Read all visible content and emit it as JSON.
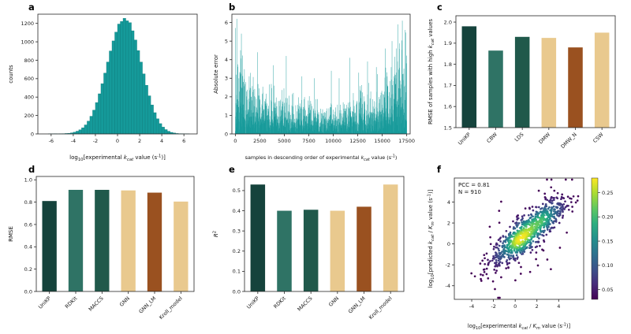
{
  "figure": {
    "background": "#ffffff"
  },
  "chart_data": [
    {
      "id": "a",
      "panel_label": "a",
      "type": "histogram",
      "xlabel_segments": [
        {
          "t": "log"
        },
        {
          "t": "10",
          "sub": true
        },
        {
          "t": "[experimental "
        },
        {
          "t": "k",
          "italic": true
        },
        {
          "t": "cat",
          "sub": true,
          "italic": true
        },
        {
          "t": " value (s"
        },
        {
          "t": "-1",
          "sup": true
        },
        {
          "t": ")]"
        }
      ],
      "ylabel_segments": [
        {
          "t": "counts"
        }
      ],
      "xlim": [
        -7.2,
        7.2
      ],
      "ylim": [
        0,
        1300
      ],
      "xticks": [
        -6,
        -4,
        -2,
        0,
        2,
        4,
        6
      ],
      "xtick_labels": [
        "-6",
        "-4",
        "-2",
        "0",
        "2",
        "4",
        "6"
      ],
      "yticks": [
        0,
        200,
        400,
        600,
        800,
        1000,
        1200
      ],
      "ytick_labels": [
        "0",
        "200",
        "400",
        "600",
        "800",
        "1000",
        "1200"
      ],
      "bar_color": "#159a9a",
      "bar_edge": "#0d7a7a",
      "bin_start": -6.5,
      "bin_width": 0.25,
      "counts": [
        0,
        1,
        1,
        2,
        1,
        2,
        3,
        5,
        7,
        12,
        19,
        30,
        45,
        67,
        98,
        139,
        192,
        258,
        340,
        436,
        545,
        660,
        781,
        901,
        1010,
        1105,
        1193,
        1221,
        1255,
        1228,
        1208,
        1120,
        1020,
        905,
        780,
        652,
        528,
        414,
        315,
        231,
        164,
        112,
        74,
        47,
        29,
        17,
        10,
        5,
        3,
        2,
        1,
        1
      ]
    },
    {
      "id": "b",
      "panel_label": "b",
      "type": "spikes",
      "xlabel_segments": [
        {
          "t": "samples in descending order of experimental "
        },
        {
          "t": "k",
          "italic": true
        },
        {
          "t": "cat",
          "sub": true,
          "italic": true
        },
        {
          "t": " value (s"
        },
        {
          "t": "-1",
          "sup": true
        },
        {
          "t": ")"
        }
      ],
      "xlabel_size": 6.4,
      "ylabel_segments": [
        {
          "t": "Absolute error"
        }
      ],
      "xlim": [
        -350,
        17850
      ],
      "ylim": [
        0,
        6.45
      ],
      "xticks": [
        0,
        2500,
        5000,
        7500,
        10000,
        12500,
        15000,
        17500
      ],
      "xtick_labels": [
        "0",
        "2500",
        "5000",
        "7500",
        "10000",
        "12500",
        "15000",
        "17500"
      ],
      "yticks": [
        0,
        1,
        2,
        3,
        4,
        5,
        6
      ],
      "ytick_labels": [
        "0",
        "1",
        "2",
        "3",
        "4",
        "5",
        "6"
      ],
      "color": "#159a9a",
      "seed": 7,
      "n_samples": 17500,
      "envelope": [
        [
          0,
          6.2
        ],
        [
          300,
          5.0
        ],
        [
          1200,
          3.6
        ],
        [
          3000,
          2.8
        ],
        [
          6000,
          2.2
        ],
        [
          9000,
          1.9
        ],
        [
          11000,
          2.2
        ],
        [
          13000,
          2.7
        ],
        [
          15000,
          3.4
        ],
        [
          16300,
          4.4
        ],
        [
          17200,
          6.0
        ],
        [
          17500,
          5.2
        ]
      ],
      "tall_spikes": [
        [
          150,
          6.2
        ],
        [
          620,
          5.4
        ],
        [
          2250,
          4.4
        ],
        [
          3900,
          3.7
        ],
        [
          5200,
          4.2
        ],
        [
          6800,
          3.1
        ],
        [
          8050,
          3.0
        ],
        [
          9800,
          3.4
        ],
        [
          10600,
          3.0
        ],
        [
          11700,
          4.1
        ],
        [
          12600,
          3.3
        ],
        [
          13500,
          3.9
        ],
        [
          14400,
          3.6
        ],
        [
          15300,
          4.6
        ],
        [
          16000,
          5.0
        ],
        [
          16600,
          5.9
        ],
        [
          17050,
          6.1
        ],
        [
          17350,
          5.6
        ]
      ]
    },
    {
      "id": "c",
      "panel_label": "c",
      "type": "bar",
      "ylabel_segments": [
        {
          "t": "RMSE of samples with high "
        },
        {
          "t": "k",
          "italic": true
        },
        {
          "t": "cat",
          "sub": true,
          "italic": true
        },
        {
          "t": " values"
        }
      ],
      "categories": [
        "UniKP",
        "CBW",
        "LDS",
        "DMW",
        "DMW_N",
        "CSW"
      ],
      "values": [
        1.98,
        1.865,
        1.93,
        1.925,
        1.88,
        1.95
      ],
      "colors": [
        "#15433c",
        "#2f7365",
        "#20594b",
        "#e9c98e",
        "#9a5120",
        "#e9c98e"
      ],
      "ylim": [
        1.5,
        2.03
      ],
      "yticks": [
        1.5,
        1.6,
        1.7,
        1.8,
        1.9,
        2.0
      ],
      "ytick_labels": [
        "1.5",
        "1.6",
        "1.7",
        "1.8",
        "1.9",
        "2.0"
      ]
    },
    {
      "id": "d",
      "panel_label": "d",
      "type": "bar",
      "ylabel_segments": [
        {
          "t": "RMSE"
        }
      ],
      "categories": [
        "UniKP",
        "RDKit",
        "MACCS",
        "GNN",
        "GNN_LM",
        "Kroll_model"
      ],
      "values": [
        0.81,
        0.91,
        0.91,
        0.905,
        0.885,
        0.805
      ],
      "colors": [
        "#15433c",
        "#2f7365",
        "#20594b",
        "#e9c98e",
        "#9a5120",
        "#e9c98e"
      ],
      "ylim": [
        0,
        1.03
      ],
      "yticks": [
        0,
        0.2,
        0.4,
        0.6,
        0.8,
        1.0
      ],
      "ytick_labels": [
        "0.0",
        "0.2",
        "0.4",
        "0.6",
        "0.8",
        "1.0"
      ]
    },
    {
      "id": "e",
      "panel_label": "e",
      "type": "bar",
      "ylabel_segments": [
        {
          "t": "R",
          "italic": true
        },
        {
          "t": "2",
          "sup": true
        }
      ],
      "categories": [
        "UniKP",
        "RDKit",
        "MACCS",
        "GNN",
        "GNN_LM",
        "Kroll_model"
      ],
      "values": [
        0.53,
        0.4,
        0.405,
        0.4,
        0.42,
        0.53
      ],
      "colors": [
        "#15433c",
        "#2f7365",
        "#20594b",
        "#e9c98e",
        "#9a5120",
        "#e9c98e"
      ],
      "ylim": [
        0,
        0.57
      ],
      "yticks": [
        0,
        0.1,
        0.2,
        0.3,
        0.4,
        0.5
      ],
      "ytick_labels": [
        "0.0",
        "0.1",
        "0.2",
        "0.3",
        "0.4",
        "0.5"
      ]
    },
    {
      "id": "f",
      "panel_label": "f",
      "type": "scatter_density",
      "xlabel_segments": [
        {
          "t": "log"
        },
        {
          "t": "10",
          "sub": true
        },
        {
          "t": "[experimental "
        },
        {
          "t": "k",
          "italic": true
        },
        {
          "t": "cat",
          "sub": true,
          "italic": true
        },
        {
          "t": " / "
        },
        {
          "t": "K",
          "italic": true
        },
        {
          "t": "m",
          "sub": true,
          "italic": true
        },
        {
          "t": " value (s"
        },
        {
          "t": "-1",
          "sup": true
        },
        {
          "t": ")]"
        }
      ],
      "xlabel_size": 6.6,
      "ylabel_segments": [
        {
          "t": "log"
        },
        {
          "t": "10",
          "sub": true
        },
        {
          "t": "[predicted "
        },
        {
          "t": "k",
          "italic": true
        },
        {
          "t": "cat",
          "sub": true,
          "italic": true
        },
        {
          "t": " / "
        },
        {
          "t": "K",
          "italic": true
        },
        {
          "t": "m",
          "sub": true,
          "italic": true
        },
        {
          "t": " value (s"
        },
        {
          "t": "-1",
          "sup": true
        },
        {
          "t": ")]"
        }
      ],
      "annotation_lines": [
        "PCC = 0.81",
        "N = 910"
      ],
      "stats": {
        "pcc": 0.81,
        "n": 910
      },
      "xlim": [
        -5.6,
        6.3
      ],
      "ylim": [
        -5.3,
        6.3
      ],
      "xticks": [
        -4,
        -2,
        0,
        2,
        4
      ],
      "xtick_labels": [
        "-4",
        "-2",
        "0",
        "2",
        "4"
      ],
      "yticks": [
        -4,
        -2,
        0,
        2,
        4
      ],
      "ytick_labels": [
        "-4",
        "-2",
        "0",
        "2",
        "4"
      ],
      "colormap": "viridis",
      "distribution": {
        "n": 910,
        "seed": 12,
        "x_mean": 1.2,
        "x_std": 1.75,
        "slope": 0.82,
        "intercept": 0.15,
        "noise_std": 0.8,
        "outlier_frac": 0.1,
        "outlier_std": 2.0
      },
      "colorbar": {
        "domain": [
          0.03,
          0.28
        ],
        "ticks": [
          0.05,
          0.1,
          0.15,
          0.2,
          0.25
        ],
        "tick_labels": [
          "0.05",
          "0.10",
          "0.15",
          "0.20",
          "0.25"
        ]
      }
    }
  ]
}
